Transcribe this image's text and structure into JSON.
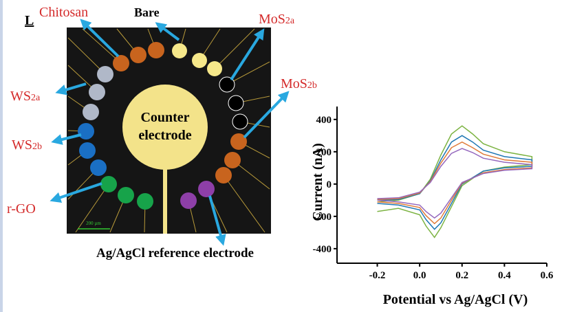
{
  "panel_label": "L",
  "labels": {
    "chitosan": "Chitosan",
    "bare": "Bare",
    "mos2a": {
      "text": "MoS",
      "sub": "2a"
    },
    "mos2b": {
      "text": "MoS",
      "sub": "2b"
    },
    "ws2a": {
      "text": "WS",
      "sub": "2a"
    },
    "ws2b": {
      "text": "WS",
      "sub": "2b"
    },
    "rgo": "r-GO",
    "counter_1": "Counter",
    "counter_2": "electrode",
    "reference": "Ag/AgCl reference electrode",
    "scale_bar": "200 µm"
  },
  "chart_data": {
    "type": "line",
    "xlabel": "Potential vs Ag/AgCl (V)",
    "ylabel": "Current (nA)",
    "xlim": [
      -0.39,
      0.6
    ],
    "ylim": [
      -490,
      480
    ],
    "xticks": [
      -0.2,
      {
        "value": 0,
        "label": "0.0"
      },
      0.2,
      0.4,
      0.6
    ],
    "yticks": [
      -400,
      -200,
      0,
      200,
      400
    ],
    "series": [
      {
        "color": "#7cb342",
        "x": [
          -0.2,
          -0.1,
          0,
          0.05,
          0.1,
          0.15,
          0.2,
          0.25,
          0.3,
          0.4,
          0.53,
          0.53,
          0.4,
          0.3,
          0.2,
          0.15,
          0.1,
          0.07,
          0.03,
          0,
          -0.1,
          -0.2
        ],
        "values": [
          -110,
          -100,
          -60,
          30,
          180,
          310,
          360,
          310,
          250,
          200,
          170,
          120,
          105,
          80,
          -10,
          -140,
          -270,
          -330,
          -260,
          -190,
          -150,
          -170
        ]
      },
      {
        "color": "#1f77b4",
        "x": [
          -0.2,
          -0.1,
          0,
          0.05,
          0.1,
          0.15,
          0.2,
          0.25,
          0.3,
          0.4,
          0.53,
          0.53,
          0.4,
          0.3,
          0.2,
          0.15,
          0.1,
          0.07,
          0.03,
          0,
          -0.1,
          -0.2
        ],
        "values": [
          -100,
          -95,
          -60,
          20,
          150,
          260,
          300,
          260,
          210,
          170,
          150,
          110,
          100,
          80,
          0,
          -120,
          -240,
          -280,
          -220,
          -160,
          -130,
          -120
        ]
      },
      {
        "color": "#e07b39",
        "x": [
          -0.2,
          -0.1,
          0,
          0.05,
          0.1,
          0.15,
          0.2,
          0.25,
          0.3,
          0.4,
          0.53,
          0.53,
          0.4,
          0.3,
          0.2,
          0.15,
          0.1,
          0.07,
          0.03,
          0,
          -0.1,
          -0.2
        ],
        "values": [
          -95,
          -90,
          -55,
          15,
          130,
          225,
          260,
          225,
          185,
          150,
          135,
          100,
          90,
          70,
          5,
          -100,
          -210,
          -245,
          -195,
          -145,
          -120,
          -110
        ]
      },
      {
        "color": "#9467bd",
        "x": [
          -0.2,
          -0.1,
          0,
          0.05,
          0.1,
          0.15,
          0.2,
          0.25,
          0.3,
          0.4,
          0.53,
          0.53,
          0.4,
          0.3,
          0.2,
          0.15,
          0.1,
          0.07,
          0.03,
          0,
          -0.1,
          -0.2
        ],
        "values": [
          -90,
          -85,
          -50,
          10,
          110,
          190,
          220,
          195,
          160,
          135,
          120,
          95,
          85,
          65,
          10,
          -85,
          -180,
          -210,
          -170,
          -130,
          -110,
          -100
        ]
      }
    ]
  }
}
